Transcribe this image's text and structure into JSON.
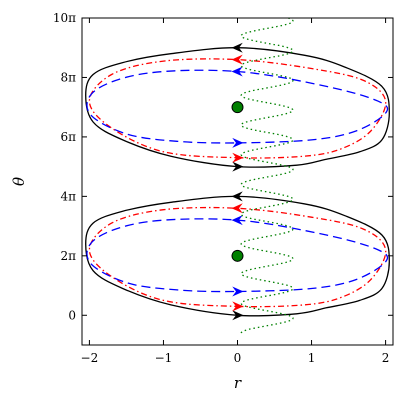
{
  "chart_data": {
    "type": "line",
    "title": "",
    "xlabel": "r",
    "ylabel": "θ",
    "xlim": [
      -2.1,
      2.1
    ],
    "ylim": [
      -1,
      10
    ],
    "y_unit": "π",
    "grid": false,
    "legend": "none",
    "x_ticks": [
      {
        "value": -2,
        "label": "−2"
      },
      {
        "value": -1,
        "label": "−1"
      },
      {
        "value": 0,
        "label": "0"
      },
      {
        "value": 1,
        "label": "1"
      },
      {
        "value": 2,
        "label": "2"
      }
    ],
    "y_ticks": [
      {
        "value": 0,
        "label": "0"
      },
      {
        "value": 2,
        "label": "2π"
      },
      {
        "value": 4,
        "label": "4π"
      },
      {
        "value": 6,
        "label": "6π"
      },
      {
        "value": 8,
        "label": "8π"
      },
      {
        "value": 10,
        "label": "10π"
      }
    ],
    "series": [
      {
        "style": "solid",
        "color": "#000000",
        "loops": [
          [
            [
              0,
              0
            ],
            [
              0.8,
              0.05
            ],
            [
              1.2,
              0.25
            ],
            [
              1.65,
              0.5
            ],
            [
              1.95,
              0.9
            ],
            [
              2.05,
              1.8
            ],
            [
              1.95,
              2.7
            ],
            [
              1.45,
              3.35
            ],
            [
              0.9,
              3.75
            ],
            [
              0,
              4.0
            ],
            [
              -0.9,
              3.8
            ],
            [
              -1.55,
              3.5
            ],
            [
              -1.95,
              3.1
            ],
            [
              -2.05,
              2.4
            ],
            [
              -1.95,
              1.5
            ],
            [
              -1.55,
              0.9
            ],
            [
              -0.9,
              0.35
            ],
            [
              0,
              0
            ]
          ],
          [
            [
              0,
              5.0
            ],
            [
              0.8,
              5.05
            ],
            [
              1.2,
              5.25
            ],
            [
              1.65,
              5.5
            ],
            [
              1.95,
              5.9
            ],
            [
              2.05,
              6.8
            ],
            [
              1.95,
              7.7
            ],
            [
              1.45,
              8.35
            ],
            [
              0.9,
              8.75
            ],
            [
              0,
              9.0
            ],
            [
              -0.9,
              8.8
            ],
            [
              -1.55,
              8.5
            ],
            [
              -1.95,
              8.1
            ],
            [
              -2.05,
              7.4
            ],
            [
              -1.95,
              6.5
            ],
            [
              -1.55,
              5.9
            ],
            [
              -0.9,
              5.35
            ],
            [
              0,
              5.0
            ]
          ]
        ],
        "arrows": [
          {
            "x": 0,
            "y": 0,
            "dir": "right"
          },
          {
            "x": 0,
            "y": 4.0,
            "dir": "left"
          },
          {
            "x": 0,
            "y": 5.0,
            "dir": "right"
          },
          {
            "x": 0,
            "y": 9.0,
            "dir": "left"
          }
        ]
      },
      {
        "style": "dashdot",
        "color": "#ff0000",
        "loops": [
          [
            [
              0,
              0.3
            ],
            [
              0.9,
              0.35
            ],
            [
              1.4,
              0.6
            ],
            [
              1.8,
              1.2
            ],
            [
              2.0,
              2.2
            ],
            [
              1.7,
              2.9
            ],
            [
              1.0,
              3.3
            ],
            [
              0,
              3.6
            ],
            [
              -1.0,
              3.55
            ],
            [
              -1.7,
              3.1
            ],
            [
              -2.0,
              2.2
            ],
            [
              -1.7,
              1.3
            ],
            [
              -1.0,
              0.5
            ],
            [
              0,
              0.3
            ]
          ],
          [
            [
              0,
              5.3
            ],
            [
              0.9,
              5.35
            ],
            [
              1.4,
              5.6
            ],
            [
              1.8,
              6.2
            ],
            [
              2.0,
              7.2
            ],
            [
              1.7,
              7.9
            ],
            [
              1.0,
              8.3
            ],
            [
              0,
              8.6
            ],
            [
              -1.0,
              8.55
            ],
            [
              -1.7,
              8.1
            ],
            [
              -2.0,
              7.2
            ],
            [
              -1.7,
              6.3
            ],
            [
              -1.0,
              5.5
            ],
            [
              0,
              5.3
            ]
          ]
        ],
        "arrows": [
          {
            "x": 0,
            "y": 0.3,
            "dir": "right"
          },
          {
            "x": 0,
            "y": 3.6,
            "dir": "left"
          },
          {
            "x": 0,
            "y": 5.3,
            "dir": "right"
          },
          {
            "x": 0,
            "y": 8.6,
            "dir": "left"
          }
        ]
      },
      {
        "style": "dashed",
        "color": "#0000ff",
        "loops": [
          [
            [
              0,
              0.8
            ],
            [
              1.0,
              0.9
            ],
            [
              1.6,
              1.2
            ],
            [
              2.0,
              1.8
            ],
            [
              1.9,
              2.2
            ],
            [
              1.2,
              2.7
            ],
            [
              0,
              3.2
            ],
            [
              -1.2,
              3.15
            ],
            [
              -1.9,
              2.6
            ],
            [
              -2.0,
              1.8
            ],
            [
              -1.5,
              1.1
            ],
            [
              -0.8,
              0.85
            ],
            [
              0,
              0.8
            ]
          ],
          [
            [
              0,
              5.8
            ],
            [
              1.0,
              5.9
            ],
            [
              1.6,
              6.2
            ],
            [
              2.0,
              6.8
            ],
            [
              1.9,
              7.2
            ],
            [
              1.2,
              7.7
            ],
            [
              0,
              8.2
            ],
            [
              -1.2,
              8.15
            ],
            [
              -1.9,
              7.6
            ],
            [
              -2.0,
              6.8
            ],
            [
              -1.5,
              6.1
            ],
            [
              -0.8,
              5.85
            ],
            [
              0,
              5.8
            ]
          ]
        ],
        "arrows": [
          {
            "x": 0,
            "y": 0.8,
            "dir": "right"
          },
          {
            "x": 0,
            "y": 3.2,
            "dir": "left"
          },
          {
            "x": 0,
            "y": 5.8,
            "dir": "right"
          },
          {
            "x": 0,
            "y": 8.2,
            "dir": "left"
          }
        ]
      },
      {
        "style": "dotted",
        "color": "#008000",
        "wave": {
          "amplitude": 1.0,
          "half_period": 0.5,
          "y_start": -0.6,
          "y_end": 10.0,
          "center_x": 0.4
        }
      }
    ],
    "points": [
      {
        "x": 0,
        "y": 2,
        "color": "#008000"
      },
      {
        "x": 0,
        "y": 7,
        "color": "#008000"
      }
    ]
  }
}
